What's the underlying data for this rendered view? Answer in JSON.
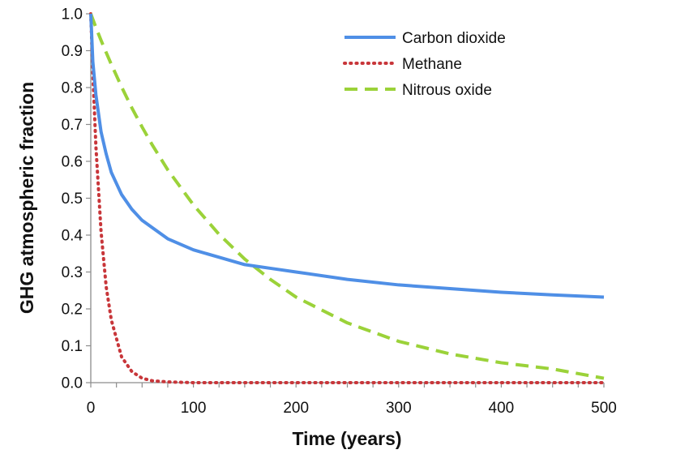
{
  "chart_data": {
    "type": "line",
    "title": "",
    "xlabel": "Time (years)",
    "ylabel": "GHG atmospheric fraction",
    "xlim": [
      0,
      500
    ],
    "ylim": [
      0,
      1.0
    ],
    "x_ticks": [
      0,
      100,
      200,
      300,
      400,
      500
    ],
    "x_tick_labels": [
      "0",
      "100",
      "200",
      "300",
      "400",
      "500"
    ],
    "y_ticks": [
      0,
      0.1,
      0.2,
      0.3,
      0.4,
      0.5,
      0.6,
      0.7,
      0.8,
      0.9,
      1.0
    ],
    "y_tick_labels": [
      "0.0",
      "0.1",
      "0.2",
      "0.3",
      "0.4",
      "0.5",
      "0.6",
      "0.7",
      "0.8",
      "0.9",
      "1.0"
    ],
    "grid": false,
    "legend_position": "top-right",
    "x": [
      0,
      2,
      5,
      10,
      15,
      20,
      30,
      40,
      50,
      60,
      75,
      100,
      125,
      150,
      175,
      200,
      250,
      300,
      350,
      400,
      450,
      500
    ],
    "series": [
      {
        "name": "Carbon dioxide",
        "color": "#4f8fe6",
        "style": "solid",
        "values": [
          1.0,
          0.87,
          0.78,
          0.68,
          0.62,
          0.57,
          0.51,
          0.47,
          0.44,
          0.42,
          0.39,
          0.36,
          0.34,
          0.32,
          0.31,
          0.3,
          0.28,
          0.265,
          0.255,
          0.245,
          0.238,
          0.232
        ]
      },
      {
        "name": "Methane",
        "color": "#c8363a",
        "style": "dotted",
        "values": [
          1.0,
          0.84,
          0.64,
          0.41,
          0.26,
          0.17,
          0.07,
          0.03,
          0.012,
          0.005,
          0.002,
          0.0,
          0.0,
          0.0,
          0.0,
          0.0,
          0.0,
          0.0,
          0.0,
          0.0,
          0.0,
          0.0
        ]
      },
      {
        "name": "Nitrous oxide",
        "color": "#9bd239",
        "style": "dashed",
        "values": [
          1.0,
          0.985,
          0.963,
          0.928,
          0.895,
          0.863,
          0.802,
          0.745,
          0.693,
          0.644,
          0.577,
          0.482,
          0.402,
          0.335,
          0.28,
          0.232,
          0.162,
          0.112,
          0.078,
          0.054,
          0.037,
          0.012
        ]
      }
    ]
  }
}
